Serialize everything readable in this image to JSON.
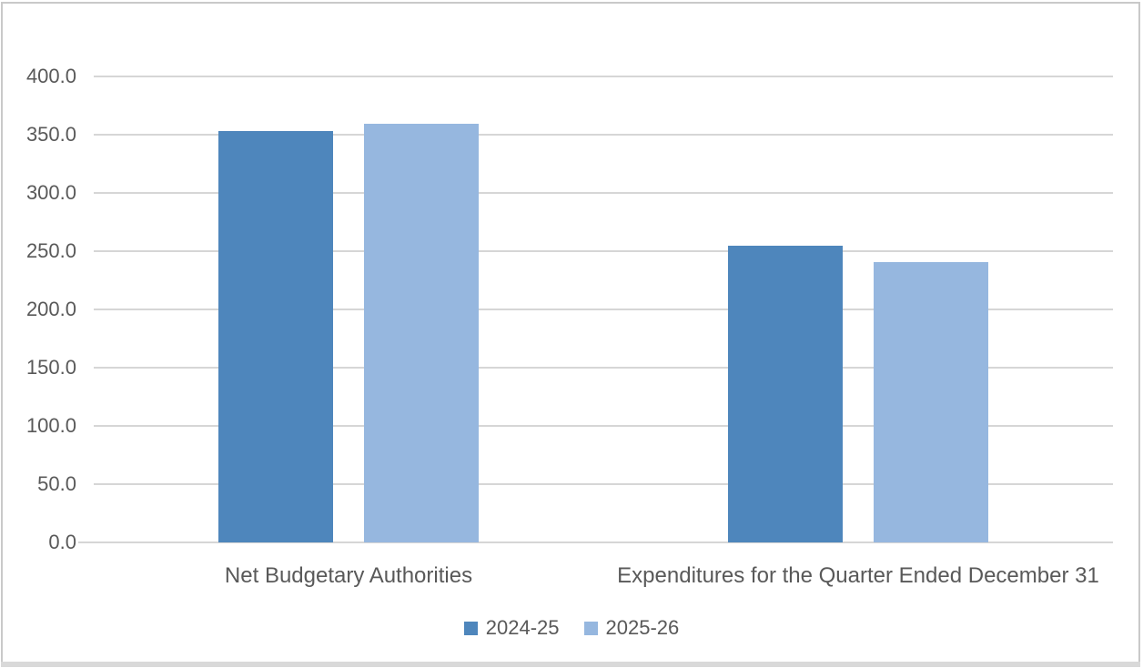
{
  "figure": {
    "background": "#FFFFFF",
    "frame_border_color": "#C9C9C9",
    "bottom_edge_color": "#D9D9D9",
    "text_color": "#595959",
    "gridline_color": "#D6D6D6"
  },
  "chart_data": {
    "type": "bar",
    "title": "",
    "categories": [
      "Net Budgetary Authorities",
      "Expenditures for the Quarter Ended December 31"
    ],
    "series": [
      {
        "name": "2024-25",
        "color": "#4E86BC",
        "values": [
          353.0,
          255.0
        ]
      },
      {
        "name": "2025-26",
        "color": "#96B7DF",
        "values": [
          359.0,
          241.0
        ]
      }
    ],
    "yticks": [
      {
        "label": "400.0",
        "value": 400
      },
      {
        "label": "350.0",
        "value": 350
      },
      {
        "label": "300.0",
        "value": 300
      },
      {
        "label": "250.0",
        "value": 250
      },
      {
        "label": "200.0",
        "value": 200
      },
      {
        "label": "150.0",
        "value": 150
      },
      {
        "label": "100.0",
        "value": 100
      },
      {
        "label": "50.0",
        "value": 50
      },
      {
        "label": "0.0",
        "value": 0
      }
    ],
    "ylim": [
      0,
      400
    ],
    "grid": true,
    "legend_position": "bottom"
  }
}
